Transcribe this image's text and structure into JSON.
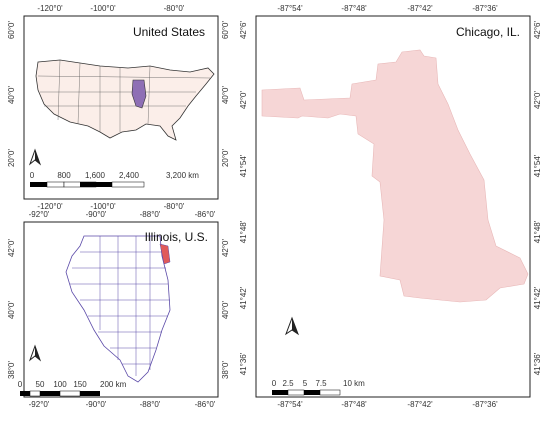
{
  "panels": [
    {
      "title": "United States",
      "xticks": [
        "-120°0'",
        "-100°0'",
        "-80°0'"
      ],
      "yticks": [
        "60°0'",
        "40°0'",
        "20°0'"
      ],
      "scale": [
        "0",
        "800",
        "1,600",
        "2,400",
        "3,200 km"
      ]
    },
    {
      "title": "Illinois, U.S.",
      "xticks": [
        "-92°0'",
        "-90°0'",
        "-88°0'",
        "-86°0'"
      ],
      "yticks": [
        "42°0'",
        "40°0'",
        "38°0'"
      ],
      "scale": [
        "0",
        "50",
        "100",
        "150",
        "200 km"
      ]
    },
    {
      "title": "Chicago, IL.",
      "xticks": [
        "-87°54'",
        "-87°48'",
        "-87°42'",
        "-87°36'"
      ],
      "yticks": [
        "42°6'",
        "42°0'",
        "41°54'",
        "41°48'",
        "41°42'",
        "41°36'"
      ],
      "scale": [
        "0",
        "2.5",
        "5",
        "7.5",
        "10 km"
      ]
    }
  ]
}
